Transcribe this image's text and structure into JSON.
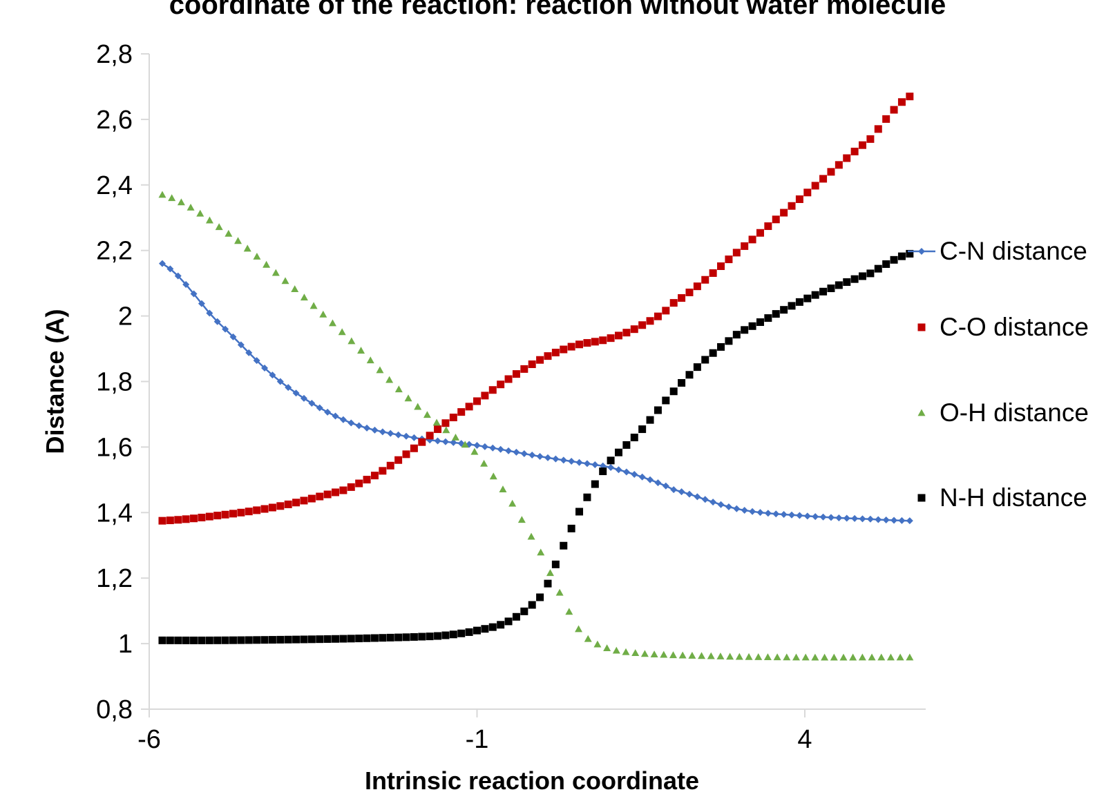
{
  "chart_data": {
    "type": "scatter",
    "title": "coordinate of the reaction: reaction without water molecule",
    "xlabel": "Intrinsic reaction coordinate",
    "ylabel": "Distance (A)",
    "xlim": [
      -6,
      6
    ],
    "ylim": [
      0.8,
      2.8
    ],
    "xticks": [
      -6,
      -1,
      4
    ],
    "yticks": [
      0.8,
      1.0,
      1.2,
      1.4,
      1.6,
      1.8,
      2.0,
      2.2,
      2.4,
      2.6,
      2.8
    ],
    "xtick_labels": [
      "-6",
      "-1",
      "4"
    ],
    "ytick_labels": [
      "0,8",
      "1",
      "1,2",
      "1,4",
      "1,6",
      "1,8",
      "2",
      "2,2",
      "2,4",
      "2,6",
      "2,8"
    ],
    "grid": false,
    "legend_position": "right",
    "series": [
      {
        "name": "C-N distance",
        "color": "#4472C4",
        "marker": "diamond",
        "line": true,
        "x": [
          -5.8,
          -5.0,
          -4.0,
          -3.0,
          -2.0,
          -1.0,
          0.0,
          1.0,
          1.5,
          2.0,
          3.0,
          4.0,
          5.0,
          5.6
        ],
        "y": [
          2.16,
          1.99,
          1.8,
          1.68,
          1.63,
          1.605,
          1.57,
          1.54,
          1.51,
          1.47,
          1.41,
          1.39,
          1.38,
          1.375
        ]
      },
      {
        "name": "C-O distance",
        "color": "#C00000",
        "marker": "square",
        "line": false,
        "x": [
          -5.8,
          -5.0,
          -4.0,
          -3.0,
          -2.5,
          -2.0,
          -1.5,
          -1.0,
          -0.5,
          0.0,
          0.5,
          1.0,
          1.5,
          2.0,
          3.0,
          4.0,
          5.0,
          5.6
        ],
        "y": [
          1.375,
          1.39,
          1.42,
          1.47,
          1.52,
          1.59,
          1.67,
          1.74,
          1.81,
          1.87,
          1.91,
          1.93,
          1.97,
          2.04,
          2.2,
          2.37,
          2.54,
          2.67
        ]
      },
      {
        "name": "O-H distance",
        "color": "#70AD47",
        "marker": "triangle",
        "line": false,
        "x": [
          -5.8,
          -5.0,
          -4.0,
          -3.0,
          -2.0,
          -1.0,
          -0.5,
          0.0,
          0.3,
          0.6,
          1.0,
          1.5,
          2.0,
          3.0,
          4.0,
          5.0,
          5.6
        ],
        "y": [
          2.37,
          2.28,
          2.12,
          1.94,
          1.74,
          1.58,
          1.44,
          1.27,
          1.14,
          1.03,
          0.985,
          0.97,
          0.965,
          0.96,
          0.958,
          0.958,
          0.958
        ]
      },
      {
        "name": "N-H distance",
        "color": "#000000",
        "marker": "square",
        "line": false,
        "x": [
          -5.8,
          -5.0,
          -4.0,
          -3.0,
          -2.0,
          -1.5,
          -1.0,
          -0.5,
          0.0,
          0.3,
          0.6,
          1.0,
          1.5,
          2.0,
          2.5,
          3.0,
          4.0,
          5.0,
          5.6
        ],
        "y": [
          1.01,
          1.01,
          1.012,
          1.015,
          1.02,
          1.025,
          1.04,
          1.07,
          1.15,
          1.29,
          1.42,
          1.55,
          1.65,
          1.77,
          1.87,
          1.95,
          2.05,
          2.13,
          2.19
        ]
      }
    ]
  }
}
